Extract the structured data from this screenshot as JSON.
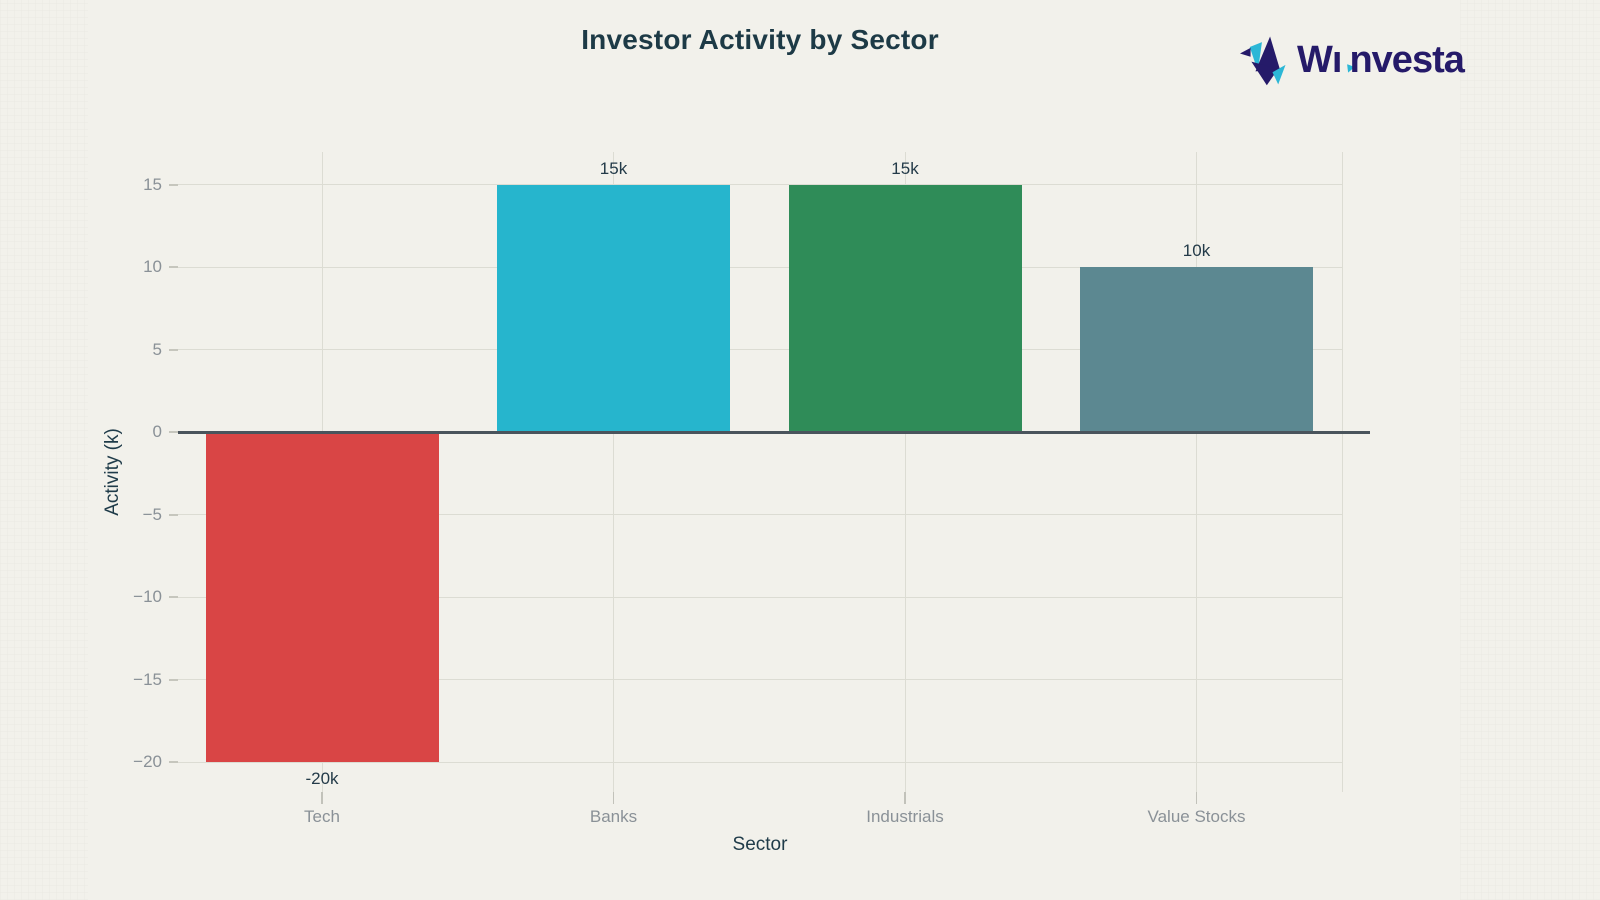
{
  "page": {
    "background_color": "#f2f1eb"
  },
  "title": "Investor Activity by Sector",
  "logo": {
    "brand": "Winvesta",
    "icon": "origami-bird-icon",
    "navy": "#251a69",
    "cyan": "#2cb7d6"
  },
  "chart_data": {
    "type": "bar",
    "title": "Investor Activity by Sector",
    "xlabel": "Sector",
    "ylabel": "Activity (k)",
    "categories": [
      "Tech",
      "Banks",
      "Industrials",
      "Value Stocks"
    ],
    "values": [
      -20,
      15,
      15,
      10
    ],
    "bar_labels": [
      "-20k",
      "15k",
      "15k",
      "10k"
    ],
    "bar_colors": [
      "#d94545",
      "#26b5cd",
      "#2f8c58",
      "#5c8891"
    ],
    "yticks": [
      15,
      10,
      5,
      0,
      -5,
      -10,
      -15,
      -20
    ],
    "ytick_labels": [
      "15",
      "10",
      "5",
      "0",
      "−5",
      "−10",
      "−15",
      "−20"
    ],
    "ylim": [
      -22,
      17
    ],
    "grid": true,
    "legend": false,
    "zero_line": true
  },
  "colors": {
    "grid": "#dcdcd3",
    "zero_line": "#4a545c",
    "tick_text": "#8a9197",
    "dark_text": "#1d3a46",
    "value_text": "#243b49"
  }
}
